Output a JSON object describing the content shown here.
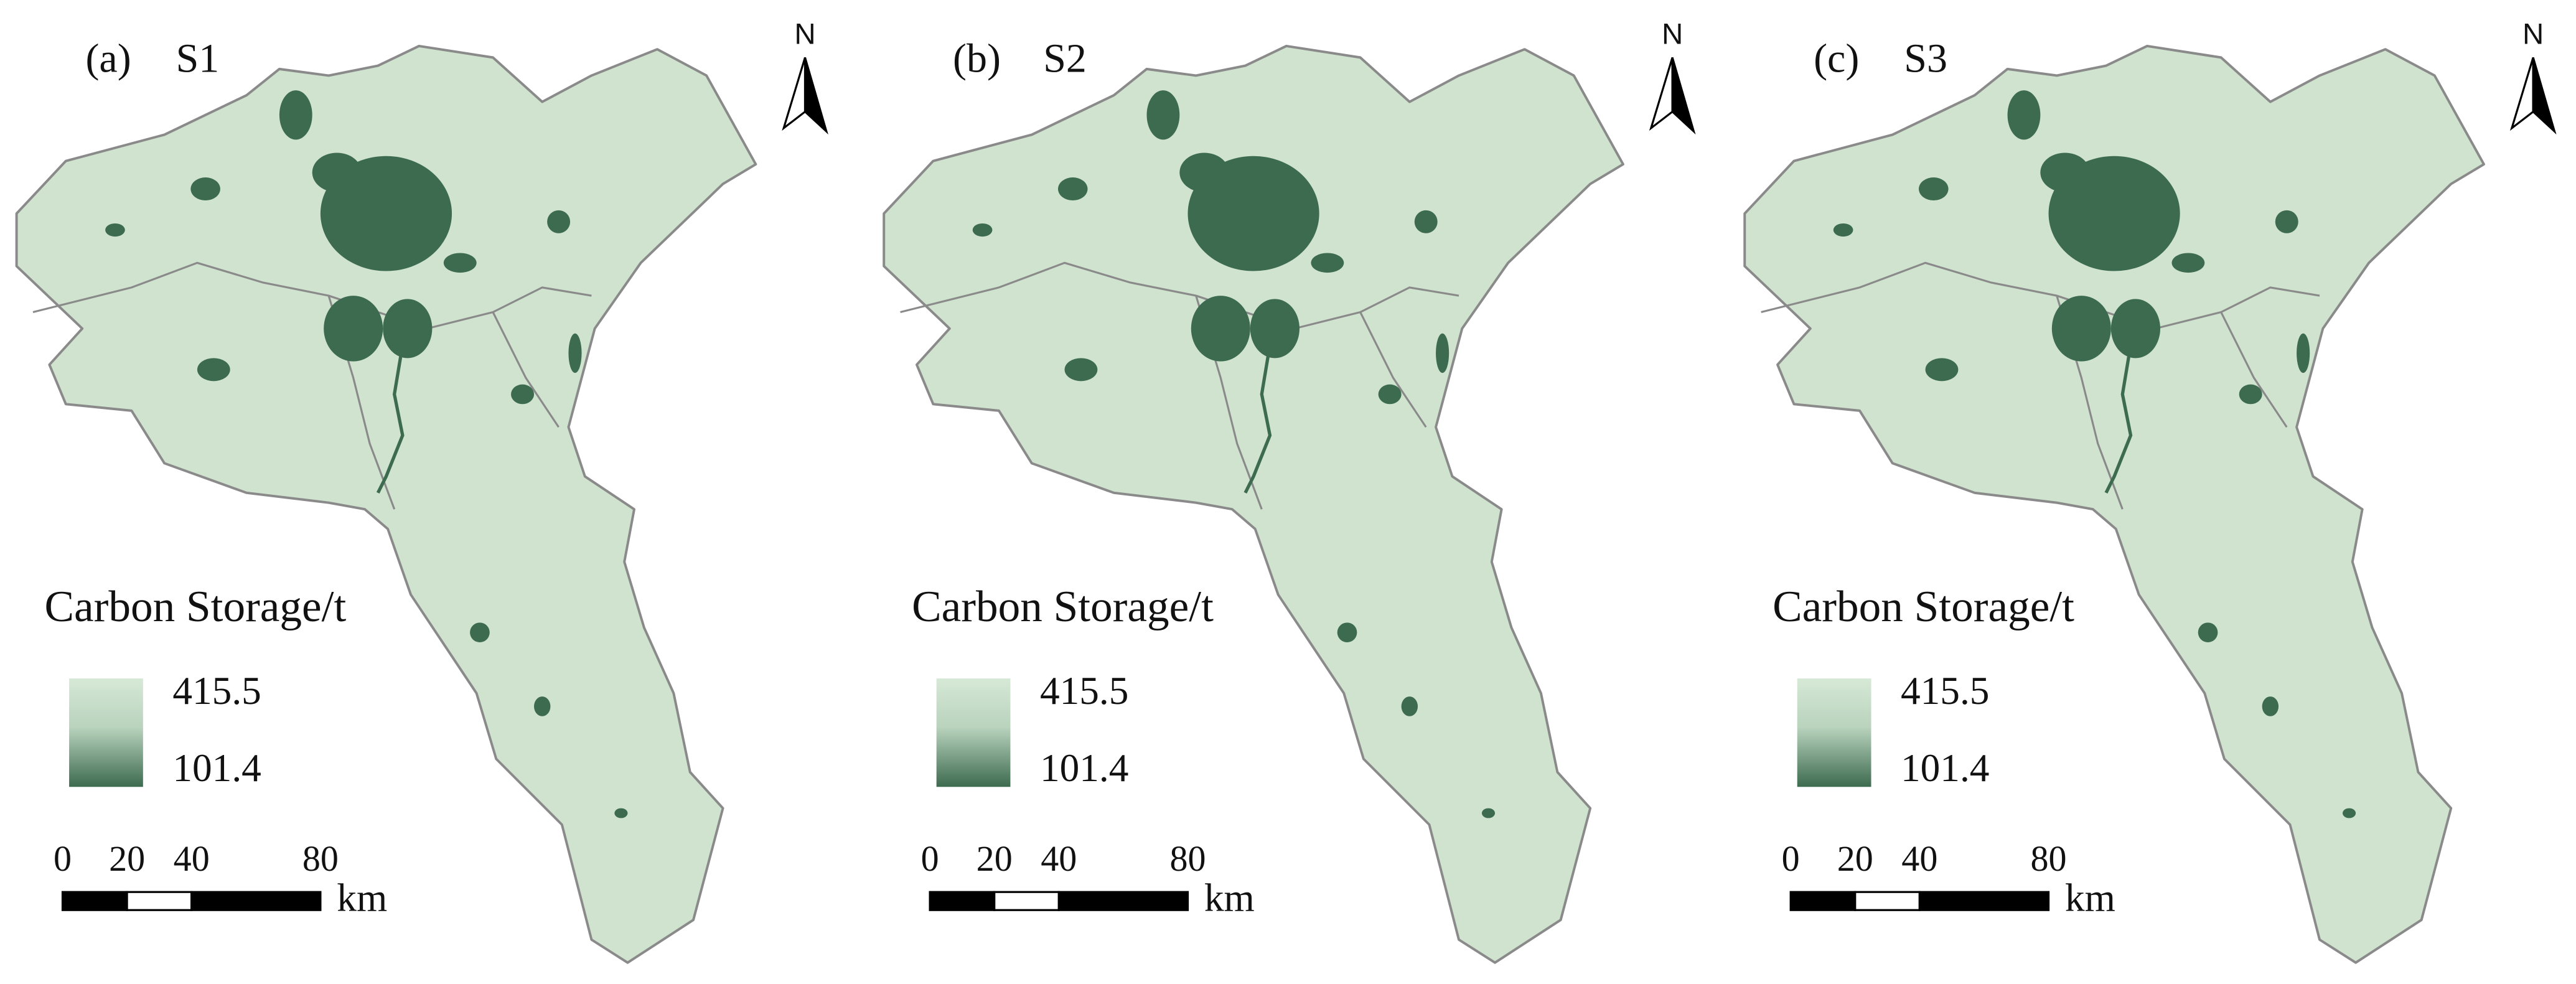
{
  "panels": [
    {
      "label": "(a)",
      "scenario": "S1",
      "legend": {
        "title": "Carbon Storage/t",
        "max": 415.5,
        "min": 101.4
      },
      "scale_bar": {
        "ticks": [
          0,
          20,
          40,
          80
        ],
        "unit": "km"
      },
      "north": "N"
    },
    {
      "label": "(b)",
      "scenario": "S2",
      "legend": {
        "title": "Carbon Storage/t",
        "max": 415.5,
        "min": 101.4
      },
      "scale_bar": {
        "ticks": [
          0,
          20,
          40,
          80
        ],
        "unit": "km"
      },
      "north": "N"
    },
    {
      "label": "(c)",
      "scenario": "S3",
      "legend": {
        "title": "Carbon Storage/t",
        "max": 415.5,
        "min": 101.4
      },
      "scale_bar": {
        "ticks": [
          0,
          20,
          40,
          80
        ],
        "unit": "km"
      },
      "north": "N"
    }
  ]
}
